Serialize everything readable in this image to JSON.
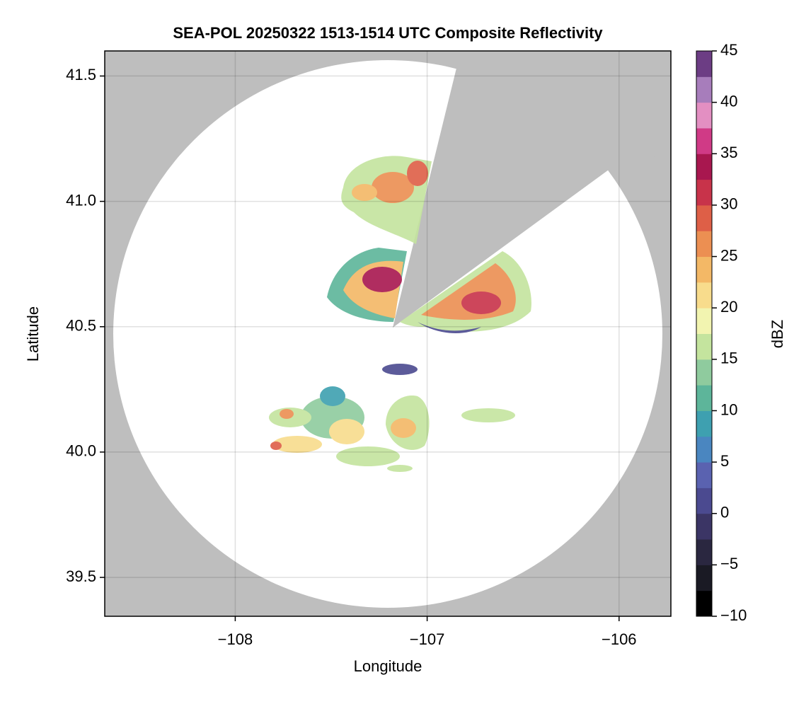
{
  "chart_data": {
    "type": "radar-map",
    "title": "SEA-POL 20250322 1513-1514 UTC Composite Reflectivity",
    "x_label": "Longitude",
    "y_label": "Latitude",
    "xlim": [
      -108.68,
      -105.73
    ],
    "xticks": [
      {
        "value": -108,
        "label": "−108"
      },
      {
        "value": -107,
        "label": "−107"
      },
      {
        "value": -106,
        "label": "−106"
      }
    ],
    "ylim": [
      39.345,
      41.6
    ],
    "yticks": [
      39.5,
      {
        "value": 40.0,
        "label": "40.0"
      },
      40.5,
      {
        "value": 41.0,
        "label": "41.0"
      },
      41.5
    ],
    "grid": true,
    "colorbar": {
      "label": "dBZ",
      "lim": [
        -10,
        45
      ],
      "ticks": [
        {
          "value": -10,
          "label": "−10"
        },
        {
          "value": -5,
          "label": "−5"
        },
        0,
        5,
        10,
        15,
        20,
        25,
        30,
        35,
        40,
        45
      ],
      "colors": [
        "#000000",
        "#1a1a24",
        "#2a2740",
        "#3b3565",
        "#4b4a90",
        "#5a62b0",
        "#4a86c0",
        "#3ea0b0",
        "#5db59a",
        "#8fcb9e",
        "#c4e49e",
        "#f2f4b0",
        "#f8dc8c",
        "#f3b866",
        "#ec8f52",
        "#de5f47",
        "#c8334a",
        "#a8174f",
        "#d03a86",
        "#e38fc2",
        "#a77dbb",
        "#6c3d84"
      ]
    }
  }
}
